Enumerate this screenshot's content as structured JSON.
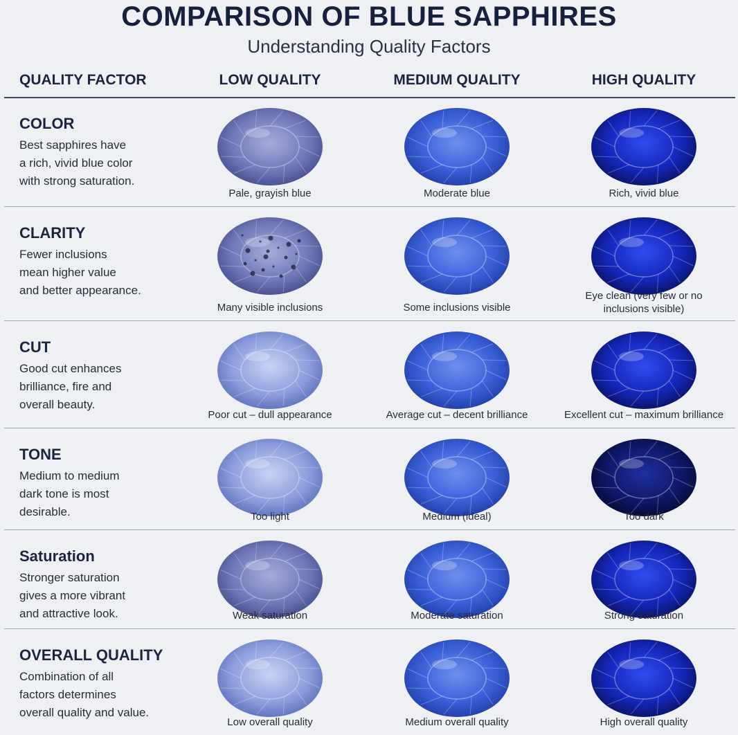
{
  "header": {
    "title": "COMPARISON OF BLUE SAPPHIRES",
    "subtitle": "Understanding Quality Factors"
  },
  "table": {
    "columns": [
      "QUALITY FACTOR",
      "LOW QUALITY",
      "MEDIUM QUALITY",
      "HIGH QUALITY"
    ],
    "rows": [
      {
        "factor": "COLOR",
        "description": [
          "Best sapphires have",
          "a rich, vivid blue color",
          "with strong saturation."
        ],
        "captions": [
          "Pale, grayish blue",
          "Moderate blue",
          "Rich, vivid blue"
        ]
      },
      {
        "factor": "CLARITY",
        "description": [
          "Fewer inclusions",
          "mean higher value",
          "and better appearance."
        ],
        "captions": [
          "Many visible inclusions",
          "Some inclusions visible",
          "Eye clean (very few or no inclusions visible)"
        ]
      },
      {
        "factor": "CUT",
        "description": [
          "Good cut enhances",
          "brilliance, fire and",
          "overall beauty."
        ],
        "captions": [
          "Poor cut – dull appearance",
          "Average cut – decent brilliance",
          "Excellent cut – maximum brilliance"
        ]
      },
      {
        "factor": "TONE",
        "description": [
          "Medium to medium",
          "dark tone is most",
          "desirable."
        ],
        "captions": [
          "Too light",
          "Medium (ideal)",
          "Too dark"
        ]
      },
      {
        "factor": "Saturation",
        "description": [
          "Stronger saturation",
          "gives a more vibrant",
          "and attractive look."
        ],
        "captions": [
          "Weak saturation",
          "Moderate saturation",
          "Strong saturation"
        ]
      },
      {
        "factor": "OVERALL QUALITY",
        "description": [
          "Combination of all",
          "factors determines",
          "overall quality and value."
        ],
        "captions": [
          "Low overall quality",
          "Medium overall quality",
          "High overall quality"
        ]
      }
    ]
  }
}
